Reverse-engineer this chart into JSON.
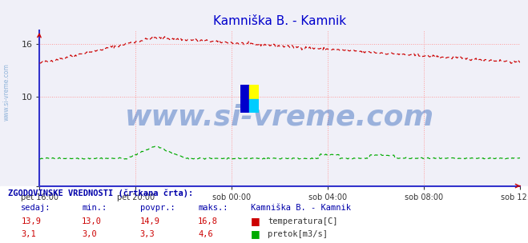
{
  "title": "Kamniška B. - Kamnik",
  "title_color": "#0000cc",
  "bg_color": "#f0f0f8",
  "plot_bg_color": "#f0f0f8",
  "grid_color": "#ff9999",
  "axis_color": "#3333cc",
  "xticklabels": [
    "pet 16:00",
    "pet 20:00",
    "sob 00:00",
    "sob 04:00",
    "sob 08:00",
    "sob 12:00"
  ],
  "xtick_positions": [
    0,
    96,
    192,
    288,
    384,
    480
  ],
  "ytick_vals": [
    0,
    10,
    16
  ],
  "ylim": [
    0,
    17.5
  ],
  "temp_color": "#cc0000",
  "flow_color": "#00aa00",
  "watermark": "www.si-vreme.com",
  "watermark_color": "#3366bb",
  "watermark_alpha": 0.45,
  "watermark_fontsize": 26,
  "side_watermark": "www.si-vreme.com",
  "side_watermark_color": "#6699cc",
  "footer_title": "ZGODOVINSKE VREDNOSTI (črtkana črta):",
  "footer_headers": [
    "sedaj:",
    "min.:",
    "povpr.:",
    "maks.:",
    "Kamniška B. - Kamnik"
  ],
  "temp_row": [
    "13,9",
    "13,0",
    "14,9",
    "16,8"
  ],
  "temp_label": "temperatura[C]",
  "temp_icon_color": "#cc0000",
  "flow_row": [
    "3,1",
    "3,0",
    "3,3",
    "4,6"
  ],
  "flow_label": "pretok[m3/s]",
  "flow_icon_color": "#00aa00",
  "n_points": 481,
  "temp_start": 13.8,
  "temp_peak": 16.7,
  "temp_peak_idx": 115,
  "temp_end": 13.9,
  "flow_base": 3.1,
  "flow_spike_start": 88,
  "flow_spike_end": 145,
  "flow_spike_height": 4.5,
  "logo_blue": "#0000cc",
  "logo_yellow": "#ffff00",
  "logo_cyan": "#00ccff"
}
